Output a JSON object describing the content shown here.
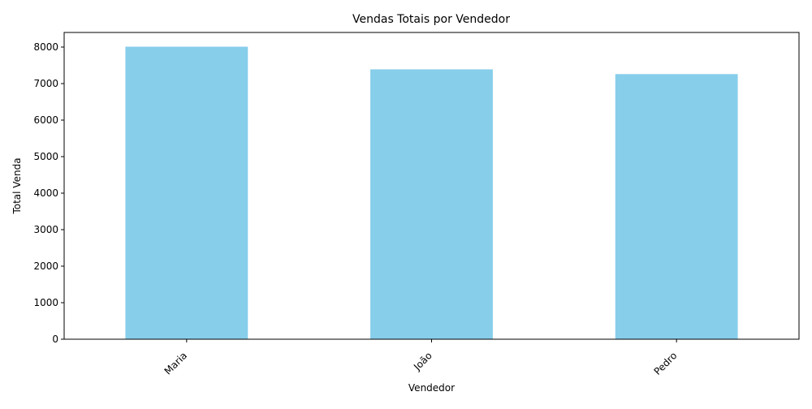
{
  "chart_data": {
    "type": "bar",
    "title": "Vendas Totais por Vendedor",
    "xlabel": "Vendedor",
    "ylabel": "Total Venda",
    "categories": [
      "Maria",
      "João",
      "Pedro"
    ],
    "values": [
      8010,
      7390,
      7260
    ],
    "ylim": [
      0,
      8400
    ],
    "yticks": [
      0,
      1000,
      2000,
      3000,
      4000,
      5000,
      6000,
      7000,
      8000
    ],
    "bar_color": "#87ceeb",
    "grid": false,
    "legend": "none",
    "xtick_rotation_deg": 45
  }
}
